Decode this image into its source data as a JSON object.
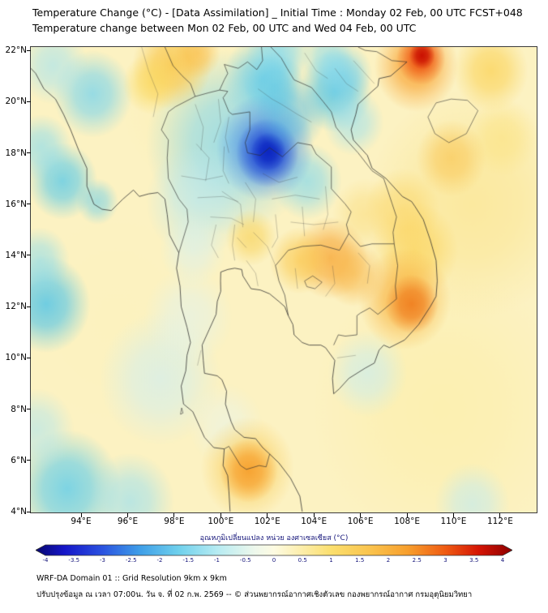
{
  "header": {
    "title_line1": "Temperature Change (°C) - [Data Assimilation] _ Initial Time : Monday 02 Feb, 00 UTC FCST+048",
    "title_line2": "Temperature change between Mon 02 Feb, 00 UTC and Wed 04 Feb, 00 UTC"
  },
  "map": {
    "lat_ticks": [
      {
        "value": 22,
        "label": "22°N"
      },
      {
        "value": 20,
        "label": "20°N"
      },
      {
        "value": 18,
        "label": "18°N"
      },
      {
        "value": 16,
        "label": "16°N"
      },
      {
        "value": 14,
        "label": "14°N"
      },
      {
        "value": 12,
        "label": "12°N"
      },
      {
        "value": 10,
        "label": "10°N"
      },
      {
        "value": 8,
        "label": "8°N"
      },
      {
        "value": 6,
        "label": "6°N"
      },
      {
        "value": 4,
        "label": "4°N"
      }
    ],
    "lon_ticks": [
      {
        "value": 94,
        "label": "94°E"
      },
      {
        "value": 96,
        "label": "96°E"
      },
      {
        "value": 98,
        "label": "98°E"
      },
      {
        "value": 100,
        "label": "100°E"
      },
      {
        "value": 102,
        "label": "102°E"
      },
      {
        "value": 104,
        "label": "104°E"
      },
      {
        "value": 106,
        "label": "106°E"
      },
      {
        "value": 108,
        "label": "108°E"
      },
      {
        "value": 110,
        "label": "110°E"
      },
      {
        "value": 112,
        "label": "112°E"
      }
    ]
  },
  "chart_data": {
    "type": "heatmap",
    "title": "Temperature Change (°C) - [Data Assimilation] _ Initial Time : Monday 02 Feb, 00 UTC FCST+048",
    "subtitle": "Temperature change between Mon 02 Feb, 00 UTC and Wed 04 Feb, 00 UTC",
    "units": "°C",
    "extent": {
      "lon_min": 91.84,
      "lon_max": 113.57,
      "lat_min": 3.97,
      "lat_max": 22.13
    },
    "base_color": "#fcf2c2",
    "base_value_c": 0.5,
    "colorbar": {
      "label": "อุณหภูมิเปลี่ยนแปลง หน่วย องศาเซลเซียส (°C)",
      "range": [
        -4,
        4
      ],
      "ticks": [
        "-4",
        "-3.5",
        "-3",
        "-2.5",
        "-2",
        "-1.5",
        "-1",
        "-0.5",
        "0",
        "0.5",
        "1",
        "1.5",
        "2",
        "2.5",
        "3",
        "3.5",
        "4"
      ],
      "stops": [
        {
          "pos": 0,
          "color": "#08086e"
        },
        {
          "pos": 6,
          "color": "#1515c8"
        },
        {
          "pos": 14,
          "color": "#2a52e0"
        },
        {
          "pos": 22,
          "color": "#3f9fe8"
        },
        {
          "pos": 30,
          "color": "#6fd0ec"
        },
        {
          "pos": 38,
          "color": "#b5ebf2"
        },
        {
          "pos": 46,
          "color": "#eef8ec"
        },
        {
          "pos": 50,
          "color": "#fdfbe2"
        },
        {
          "pos": 54,
          "color": "#fdf2bc"
        },
        {
          "pos": 62,
          "color": "#fbdf6e"
        },
        {
          "pos": 70,
          "color": "#fac44e"
        },
        {
          "pos": 78,
          "color": "#f79f2d"
        },
        {
          "pos": 86,
          "color": "#ef5a12"
        },
        {
          "pos": 93,
          "color": "#d41404"
        },
        {
          "pos": 100,
          "color": "#8c0000"
        }
      ]
    },
    "field_features": [
      {
        "lon": 109.5,
        "lat": 8.0,
        "radius_deg": 5.5,
        "color": "#fcefa6",
        "alpha": 0.6,
        "dt_c": 0.8,
        "note": "broad mild warming SE quadrant"
      },
      {
        "lon": 110.8,
        "lat": 16.0,
        "radius_deg": 4.5,
        "color": "#fbe388",
        "alpha": 0.6,
        "dt_c": 1.2,
        "note": "yellow wash east of Vietnam coast"
      },
      {
        "lon": 95.5,
        "lat": 11.5,
        "radius_deg": 4.0,
        "color": "#fdf3bd",
        "alpha": 0.5,
        "dt_c": 0.5
      },
      {
        "lon": 98.8,
        "lat": 19.8,
        "radius_deg": 3.0,
        "color": "#fdf0b0",
        "alpha": 0.45,
        "dt_c": 0.6
      },
      {
        "lon": 100.4,
        "lat": 18.4,
        "radius_deg": 3.6,
        "color": "#90daea",
        "alpha": 0.85,
        "dt_c": -1.2,
        "note": "large cool area N Thailand"
      },
      {
        "lon": 99.0,
        "lat": 16.1,
        "radius_deg": 2.2,
        "color": "#bce9ef",
        "alpha": 0.65,
        "dt_c": -0.6
      },
      {
        "lon": 101.8,
        "lat": 20.9,
        "radius_deg": 1.7,
        "color": "#6fd0e9",
        "alpha": 0.8,
        "dt_c": -1.5
      },
      {
        "lon": 102.5,
        "lat": 21.9,
        "radius_deg": 1.4,
        "color": "#8adcee",
        "alpha": 0.75,
        "dt_c": -1.2
      },
      {
        "lon": 104.9,
        "lat": 20.4,
        "radius_deg": 1.6,
        "color": "#58c7e7",
        "alpha": 0.85,
        "dt_c": -1.8
      },
      {
        "lon": 105.7,
        "lat": 19.2,
        "radius_deg": 1.3,
        "color": "#9ee1ee",
        "alpha": 0.65,
        "dt_c": -1.0
      },
      {
        "lon": 105.3,
        "lat": 21.1,
        "radius_deg": 1.2,
        "color": "#7fd5ec",
        "alpha": 0.7,
        "dt_c": -1.3
      },
      {
        "lon": 104.6,
        "lat": 21.7,
        "radius_deg": 1.1,
        "color": "#8adcee",
        "alpha": 0.65,
        "dt_c": -1.2
      },
      {
        "lon": 103.7,
        "lat": 16.9,
        "radius_deg": 1.5,
        "color": "#86d9ec",
        "alpha": 0.7,
        "dt_c": -1.1
      },
      {
        "lon": 93.2,
        "lat": 16.9,
        "radius_deg": 1.5,
        "color": "#60cce8",
        "alpha": 0.8,
        "dt_c": -1.6
      },
      {
        "lon": 92.3,
        "lat": 18.2,
        "radius_deg": 1.3,
        "color": "#8adcee",
        "alpha": 0.65,
        "dt_c": -1.1
      },
      {
        "lon": 94.7,
        "lat": 16.1,
        "radius_deg": 0.9,
        "color": "#6fd0e9",
        "alpha": 0.6,
        "dt_c": -1.3
      },
      {
        "lon": 94.5,
        "lat": 20.3,
        "radius_deg": 1.7,
        "color": "#7fd6ec",
        "alpha": 0.8,
        "dt_c": -1.4
      },
      {
        "lon": 92.8,
        "lat": 21.4,
        "radius_deg": 1.5,
        "color": "#a7e4f0",
        "alpha": 0.65,
        "dt_c": -0.9
      },
      {
        "lon": 92.5,
        "lat": 12.1,
        "radius_deg": 1.9,
        "color": "#58c7e7",
        "alpha": 0.85,
        "dt_c": -1.8,
        "note": "cool patch west edge Bay of Bengal"
      },
      {
        "lon": 92.2,
        "lat": 13.8,
        "radius_deg": 1.3,
        "color": "#8adcee",
        "alpha": 0.6,
        "dt_c": -1.1
      },
      {
        "lon": 97.4,
        "lat": 9.2,
        "radius_deg": 2.6,
        "color": "#cfeef2",
        "alpha": 0.65,
        "dt_c": -0.4
      },
      {
        "lon": 98.6,
        "lat": 11.6,
        "radius_deg": 1.9,
        "color": "#def3f1",
        "alpha": 0.55,
        "dt_c": -0.3
      },
      {
        "lon": 93.4,
        "lat": 4.9,
        "radius_deg": 2.3,
        "color": "#68cfe9",
        "alpha": 0.85,
        "dt_c": -1.6,
        "note": "cool area SW corner"
      },
      {
        "lon": 96.1,
        "lat": 4.4,
        "radius_deg": 1.9,
        "color": "#a0e1ee",
        "alpha": 0.7,
        "dt_c": -0.9
      },
      {
        "lon": 92.1,
        "lat": 7.2,
        "radius_deg": 1.6,
        "color": "#aee6f0",
        "alpha": 0.6,
        "dt_c": -0.8
      },
      {
        "lon": 106.3,
        "lat": 9.4,
        "radius_deg": 1.7,
        "color": "#c8edf1",
        "alpha": 0.65,
        "dt_c": -0.4
      },
      {
        "lon": 98.8,
        "lat": 14.2,
        "radius_deg": 1.4,
        "color": "#d7f1f1",
        "alpha": 0.55,
        "dt_c": -0.3
      },
      {
        "lon": 100.2,
        "lat": 7.4,
        "radius_deg": 1.6,
        "color": "#e7f5ef",
        "alpha": 0.5,
        "dt_c": -0.1
      },
      {
        "lon": 110.8,
        "lat": 4.3,
        "radius_deg": 1.6,
        "color": "#c2ebf0",
        "alpha": 0.65,
        "dt_c": -0.5
      },
      {
        "lon": 101.9,
        "lat": 18.2,
        "radius_deg": 2.1,
        "color": "#4180e2",
        "alpha": 0.8,
        "dt_c": -2.5
      },
      {
        "lon": 102.0,
        "lat": 18.0,
        "radius_deg": 1.35,
        "color": "#1c40d2",
        "alpha": 0.9,
        "dt_c": -3.2
      },
      {
        "lon": 102.05,
        "lat": 18.05,
        "radius_deg": 0.75,
        "color": "#0a23c0",
        "alpha": 0.9,
        "dt_c": -3.8,
        "note": "strongest cooling core ~102E 18N"
      },
      {
        "lon": 103.0,
        "lat": 19.5,
        "radius_deg": 1.5,
        "color": "#4bb9e6",
        "alpha": 0.55,
        "dt_c": -1.6
      },
      {
        "lon": 102.3,
        "lat": 20.6,
        "radius_deg": 1.3,
        "color": "#58c7e8",
        "alpha": 0.55,
        "dt_c": -1.5
      },
      {
        "lon": 97.9,
        "lat": 21.4,
        "radius_deg": 1.7,
        "color": "#f9c74c",
        "alpha": 0.85,
        "dt_c": 2.0,
        "note": "warm area N Myanmar/Shan"
      },
      {
        "lon": 97.0,
        "lat": 20.7,
        "radius_deg": 1.2,
        "color": "#fbd95e",
        "alpha": 0.7,
        "dt_c": 1.6
      },
      {
        "lon": 99.0,
        "lat": 21.9,
        "radius_deg": 1.0,
        "color": "#f9b93f",
        "alpha": 0.6,
        "dt_c": 2.2
      },
      {
        "lon": 111.6,
        "lat": 21.2,
        "radius_deg": 1.6,
        "color": "#fbd358",
        "alpha": 0.75,
        "dt_c": 1.8
      },
      {
        "lon": 112.1,
        "lat": 18.6,
        "radius_deg": 1.5,
        "color": "#fce27e",
        "alpha": 0.6,
        "dt_c": 1.4
      },
      {
        "lon": 108.4,
        "lat": 21.4,
        "radius_deg": 1.8,
        "color": "#f9a433",
        "alpha": 0.85,
        "dt_c": 2.6
      },
      {
        "lon": 108.6,
        "lat": 21.7,
        "radius_deg": 1.05,
        "color": "#ee5012",
        "alpha": 0.9,
        "dt_c": 3.2
      },
      {
        "lon": 108.65,
        "lat": 21.8,
        "radius_deg": 0.55,
        "color": "#c80d00",
        "alpha": 0.95,
        "dt_c": 3.9,
        "note": "strongest warming core NE corner"
      },
      {
        "lon": 108.3,
        "lat": 14.2,
        "radius_deg": 1.9,
        "color": "#fbd04e",
        "alpha": 0.65,
        "dt_c": 1.7
      },
      {
        "lon": 107.9,
        "lat": 12.3,
        "radius_deg": 2.0,
        "color": "#f9b23c",
        "alpha": 0.8,
        "dt_c": 2.2
      },
      {
        "lon": 108.2,
        "lat": 12.1,
        "radius_deg": 1.15,
        "color": "#f07d1e",
        "alpha": 0.9,
        "dt_c": 2.9,
        "note": "warm core S Vietnam coast"
      },
      {
        "lon": 104.7,
        "lat": 13.9,
        "radius_deg": 1.6,
        "color": "#f8a93a",
        "alpha": 0.8,
        "dt_c": 2.4,
        "note": "warm band N Cambodia"
      },
      {
        "lon": 103.4,
        "lat": 13.8,
        "radius_deg": 1.3,
        "color": "#fbc94e",
        "alpha": 0.7,
        "dt_c": 1.8
      },
      {
        "lon": 105.7,
        "lat": 13.3,
        "radius_deg": 1.3,
        "color": "#f9b646",
        "alpha": 0.65,
        "dt_c": 2.0
      },
      {
        "lon": 101.3,
        "lat": 14.7,
        "radius_deg": 1.1,
        "color": "#f8d258",
        "alpha": 0.65,
        "dt_c": 1.5
      },
      {
        "lon": 101.15,
        "lat": 5.7,
        "radius_deg": 2.0,
        "color": "#fbc94e",
        "alpha": 0.7,
        "dt_c": 1.8
      },
      {
        "lon": 101.2,
        "lat": 5.6,
        "radius_deg": 1.25,
        "color": "#f79f2d",
        "alpha": 0.9,
        "dt_c": 2.5,
        "note": "warm spot S peninsula"
      },
      {
        "lon": 109.9,
        "lat": 17.8,
        "radius_deg": 1.5,
        "color": "#f9c24a",
        "alpha": 0.6,
        "dt_c": 1.7
      },
      {
        "lon": 107.8,
        "lat": 15.8,
        "radius_deg": 1.6,
        "color": "#fbd35c",
        "alpha": 0.55,
        "dt_c": 1.4
      },
      {
        "lon": 106.2,
        "lat": 15.6,
        "radius_deg": 1.4,
        "color": "#fbd76a",
        "alpha": 0.45,
        "dt_c": 1.2
      }
    ]
  },
  "footer": {
    "line1": "WRF-DA Domain 01 :: Grid Resolution 9km x 9km",
    "line2": "ปรับปรุงข้อมูล ณ เวลา 07:00น. วัน จ. ที่ 02 ก.พ. 2569 -- © ส่วนพยากรณ์อากาศเชิงตัวเลข กองพยากรณ์อากาศ กรมอุตุนิยมวิทยา"
  }
}
